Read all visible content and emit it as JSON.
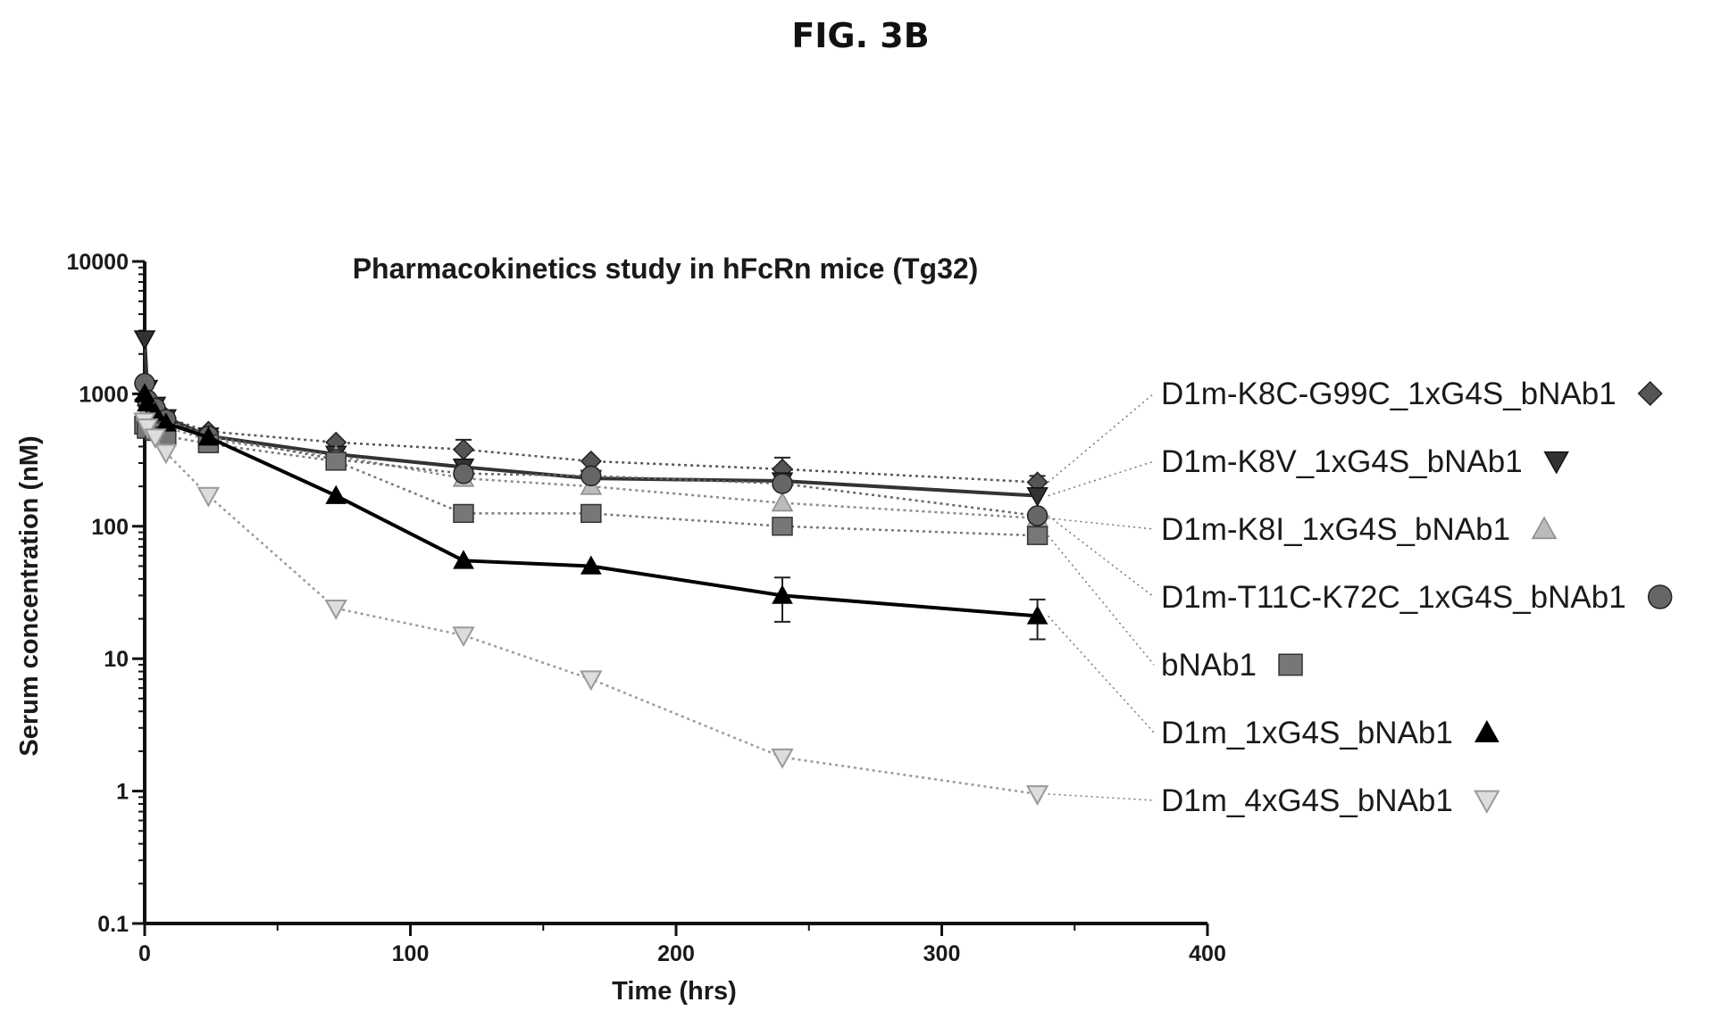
{
  "figure": {
    "label": "FIG. 3B"
  },
  "chart_data": {
    "type": "line",
    "title": "Pharmacokinetics  study  in hFcRn mice (Tg32)",
    "xlabel": "Time (hrs)",
    "ylabel": "Serum concentration (nM)",
    "xlim": [
      0,
      400
    ],
    "ylim": [
      0.1,
      10000
    ],
    "yscale": "log",
    "xticks": [
      0,
      100,
      200,
      300,
      400
    ],
    "xtick_labels": [
      "0",
      "100",
      "200",
      "300",
      "400"
    ],
    "yticks": [
      0.1,
      1,
      10,
      100,
      1000,
      10000
    ],
    "ytick_labels": [
      "0.1",
      "1",
      "10",
      "100",
      "1000",
      "10000"
    ],
    "grid": false,
    "legend_position": "right",
    "series": [
      {
        "name": "D1m-K8C-G99C_1xG4S_bNAb1",
        "marker": "diamond",
        "color": "#555555",
        "line": "dotted",
        "x": [
          0,
          1,
          4,
          8,
          24,
          72,
          120,
          168,
          240,
          336
        ],
        "y": [
          900,
          820,
          740,
          660,
          520,
          430,
          380,
          310,
          270,
          215
        ],
        "err": [
          0,
          0,
          0,
          0,
          0,
          0,
          70,
          0,
          60,
          25
        ]
      },
      {
        "name": "D1m-K8V_1xG4S_bNAb1",
        "marker": "triangle-down",
        "color": "#333333",
        "line": "solid",
        "x": [
          0,
          1,
          4,
          8,
          24,
          72,
          120,
          168,
          240,
          336
        ],
        "y": [
          2600,
          1100,
          820,
          660,
          480,
          350,
          280,
          230,
          220,
          170
        ],
        "err": [
          0,
          0,
          0,
          0,
          0,
          0,
          0,
          0,
          0,
          0
        ]
      },
      {
        "name": "D1m-K8I_1xG4S_bNAb1",
        "marker": "triangle-up",
        "color": "#8a8a8a",
        "line": "dotted",
        "x": [
          0,
          1,
          4,
          8,
          24,
          72,
          120,
          168,
          240,
          336
        ],
        "y": [
          700,
          650,
          600,
          560,
          450,
          340,
          230,
          200,
          150,
          115
        ],
        "err": [
          0,
          0,
          0,
          0,
          0,
          0,
          0,
          0,
          0,
          0
        ]
      },
      {
        "name": "D1m-T11C-K72C_1xG4S_bNAb1",
        "marker": "circle",
        "color": "#666666",
        "line": "dotted",
        "x": [
          0,
          1,
          4,
          8,
          24,
          72,
          120,
          168,
          240,
          336
        ],
        "y": [
          1200,
          900,
          780,
          640,
          480,
          320,
          250,
          240,
          210,
          120
        ],
        "err": [
          0,
          0,
          0,
          0,
          0,
          0,
          0,
          0,
          0,
          0
        ]
      },
      {
        "name": "bNAb1",
        "marker": "square",
        "color": "#777777",
        "line": "dotted",
        "x": [
          0,
          1,
          4,
          8,
          24,
          72,
          120,
          168,
          240,
          336
        ],
        "y": [
          580,
          540,
          520,
          480,
          420,
          310,
          125,
          125,
          100,
          85
        ],
        "err": [
          0,
          0,
          0,
          0,
          0,
          0,
          0,
          0,
          0,
          0
        ]
      },
      {
        "name": "D1m_1xG4S_bNAb1",
        "marker": "triangle-up-filled",
        "color": "#000000",
        "line": "solid",
        "x": [
          0,
          1,
          4,
          8,
          24,
          72,
          120,
          168,
          240,
          336
        ],
        "y": [
          1000,
          850,
          720,
          600,
          470,
          170,
          55,
          50,
          30,
          21
        ],
        "err": [
          0,
          0,
          0,
          0,
          0,
          0,
          0,
          0,
          11,
          7
        ]
      },
      {
        "name": "D1m_4xG4S_bNAb1",
        "marker": "triangle-down-open",
        "color": "#9a9a9a",
        "line": "dotted",
        "x": [
          0,
          1,
          4,
          8,
          24,
          72,
          120,
          168,
          240,
          336
        ],
        "y": [
          620,
          560,
          470,
          360,
          170,
          24,
          15,
          7,
          1.8,
          0.95
        ],
        "err": [
          0,
          0,
          0,
          0,
          0,
          0,
          0,
          0,
          0,
          0
        ]
      }
    ]
  }
}
